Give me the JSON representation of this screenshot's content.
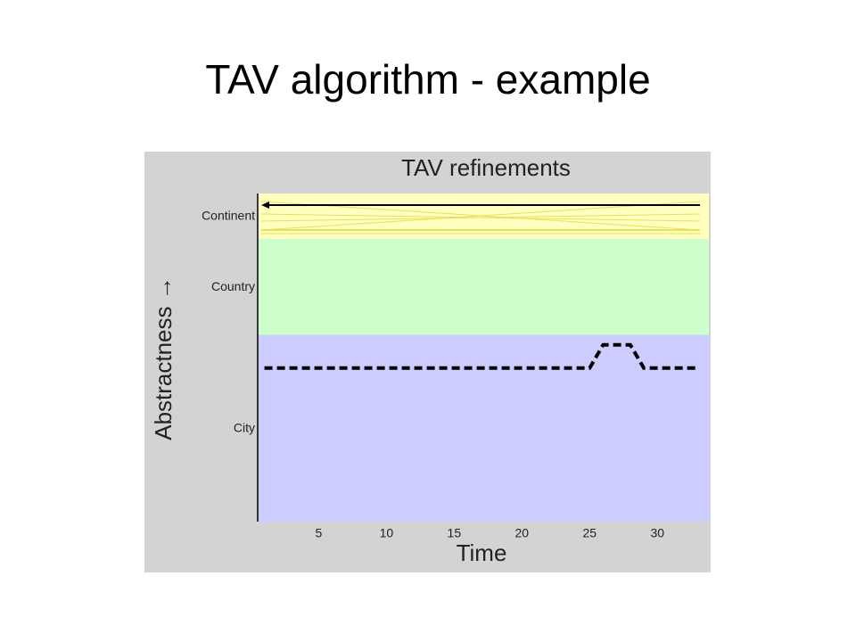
{
  "slide": {
    "title": "TAV algorithm - example"
  },
  "chart_data": {
    "type": "line",
    "title": "TAV refinements",
    "x_label": "Time",
    "y_label": "Abstractness →",
    "x": [
      1,
      2,
      3,
      4,
      5,
      6,
      7,
      8,
      9,
      10,
      11,
      12,
      13,
      14,
      15,
      16,
      17,
      18,
      19,
      20,
      21,
      22,
      23,
      24,
      25,
      26,
      27,
      28,
      29,
      30,
      31,
      32,
      33
    ],
    "series": [
      {
        "color": "#000000",
        "dashed": true,
        "values": [
          3.37,
          3.37,
          3.37,
          3.37,
          3.37,
          3.37,
          3.37,
          3.37,
          3.37,
          3.37,
          3.37,
          3.37,
          3.37,
          3.37,
          3.37,
          3.37,
          3.37,
          3.37,
          3.37,
          3.37,
          3.37,
          3.37,
          3.37,
          3.37,
          3.37,
          3.88,
          3.88,
          3.88,
          3.37,
          3.37,
          3.37,
          3.37,
          3.37
        ]
      }
    ],
    "bands": [
      {
        "range": [
          0,
          4.1
        ],
        "color": "#ccccff"
      },
      {
        "range": [
          4.1,
          6.2
        ],
        "color": "#ccffcc"
      },
      {
        "range": [
          6.2,
          7.2
        ],
        "color": "#ffffc0"
      }
    ],
    "xlim": [
      0.5,
      33.8
    ],
    "xticks": [
      5,
      10,
      15,
      20,
      25,
      30
    ],
    "ylim": [
      0,
      7.2
    ],
    "yticks": [
      {
        "value": 2.04,
        "label": "City"
      },
      {
        "value": 5.14,
        "label": "Country"
      },
      {
        "value": 6.7,
        "label": "Continent"
      }
    ],
    "background": "#d3d3d3"
  }
}
